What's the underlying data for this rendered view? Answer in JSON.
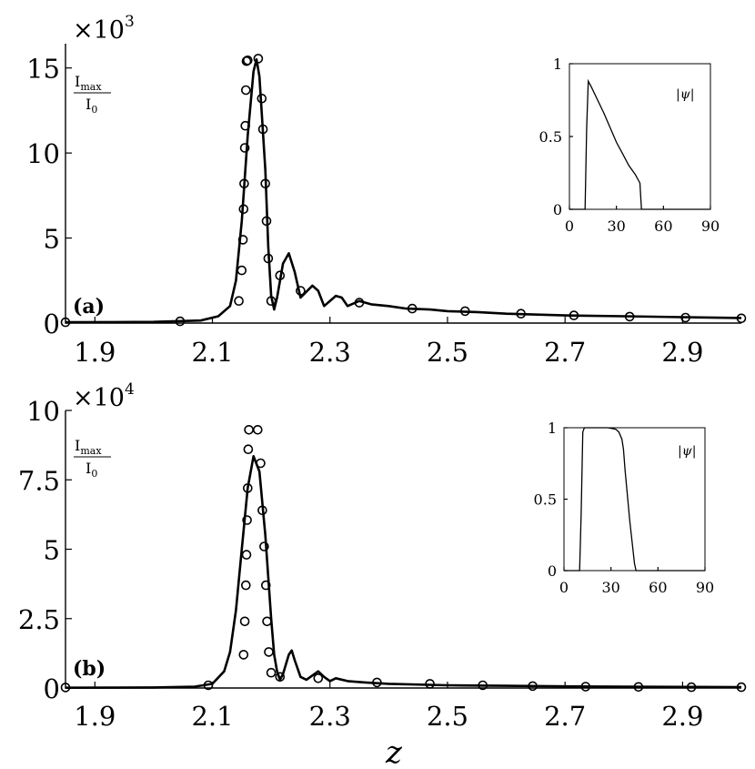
{
  "chart_data": [
    {
      "type": "line",
      "panel": "(a)",
      "xlabel": "",
      "ylabel": "Imax/I0",
      "ylabel_main": "I",
      "ylabel_sub": "max",
      "ylabel_den_main": "I",
      "ylabel_den_sub": "0",
      "exponent_base": "×10",
      "exponent_power": "3",
      "xlim": [
        1.85,
        3.0
      ],
      "ylim": [
        0,
        16
      ],
      "xticks": [
        "1.9",
        "2.1",
        "2.3",
        "2.5",
        "2.7",
        "2.9"
      ],
      "yticks": [
        "0",
        "5",
        "10",
        "15"
      ],
      "grid": false,
      "series": [
        {
          "style": "solid line",
          "x": [
            1.85,
            2.0,
            2.08,
            2.11,
            2.13,
            2.14,
            2.15,
            2.16,
            2.17,
            2.175,
            2.18,
            2.19,
            2.195,
            2.2,
            2.205,
            2.21,
            2.22,
            2.23,
            2.24,
            2.25,
            2.27,
            2.28,
            2.29,
            2.31,
            2.32,
            2.33,
            2.35,
            2.37,
            2.4,
            2.43,
            2.47,
            2.5,
            2.55,
            2.6,
            2.7,
            2.8,
            2.9,
            3.0
          ],
          "y": [
            0.05,
            0.07,
            0.15,
            0.4,
            1.0,
            2.5,
            6.0,
            11.0,
            14.8,
            15.5,
            14.5,
            9.0,
            4.5,
            1.6,
            0.8,
            1.5,
            3.5,
            4.1,
            3.0,
            1.5,
            2.2,
            1.9,
            1.0,
            1.6,
            1.5,
            1.0,
            1.3,
            1.1,
            1.0,
            0.85,
            0.8,
            0.7,
            0.65,
            0.55,
            0.45,
            0.4,
            0.35,
            0.3
          ]
        },
        {
          "style": "circle markers",
          "x": [
            1.85,
            2.045,
            2.145,
            2.15,
            2.152,
            2.153,
            2.154,
            2.155,
            2.156,
            2.157,
            2.158,
            2.16,
            2.178,
            2.184,
            2.186,
            2.19,
            2.192,
            2.195,
            2.2,
            2.215,
            2.25,
            2.35,
            2.44,
            2.53,
            2.625,
            2.715,
            2.81,
            2.905,
            3.0
          ],
          "y": [
            0.05,
            0.1,
            1.3,
            3.1,
            4.9,
            6.7,
            8.2,
            10.3,
            11.6,
            13.7,
            15.4,
            15.45,
            15.55,
            13.2,
            11.4,
            8.2,
            6.0,
            3.8,
            1.3,
            2.8,
            1.9,
            1.2,
            0.85,
            0.7,
            0.55,
            0.45,
            0.38,
            0.32,
            0.28
          ]
        }
      ],
      "inset": {
        "label": "|ψ|",
        "xlim": [
          0,
          90
        ],
        "ylim": [
          0,
          1
        ],
        "xticks": [
          "0",
          "30",
          "60",
          "90"
        ],
        "yticks": [
          "0",
          "0.5",
          "1"
        ],
        "x": [
          0,
          10,
          11,
          12,
          14,
          18,
          22,
          26,
          30,
          34,
          38,
          42,
          44,
          45,
          46,
          90
        ],
        "y": [
          0,
          0,
          0.55,
          0.88,
          0.84,
          0.75,
          0.66,
          0.56,
          0.46,
          0.38,
          0.3,
          0.24,
          0.2,
          0.18,
          0,
          0
        ]
      }
    },
    {
      "type": "line",
      "panel": "(b)",
      "xlabel": "z",
      "ylabel": "Imax/I0",
      "ylabel_main": "I",
      "ylabel_sub": "max",
      "ylabel_den_main": "I",
      "ylabel_den_sub": "0",
      "exponent_base": "×10",
      "exponent_power": "4",
      "xlim": [
        1.85,
        3.0
      ],
      "ylim": [
        0,
        10
      ],
      "xticks": [
        "1.9",
        "2.1",
        "2.3",
        "2.5",
        "2.7",
        "2.9"
      ],
      "yticks": [
        "0",
        "2.5",
        "5",
        "7.5",
        "10"
      ],
      "grid": false,
      "series": [
        {
          "style": "solid line",
          "x": [
            1.85,
            2.0,
            2.07,
            2.1,
            2.12,
            2.13,
            2.14,
            2.15,
            2.16,
            2.17,
            2.18,
            2.19,
            2.2,
            2.205,
            2.21,
            2.215,
            2.22,
            2.23,
            2.235,
            2.24,
            2.25,
            2.26,
            2.28,
            2.29,
            2.3,
            2.31,
            2.33,
            2.36,
            2.4,
            2.5,
            2.6,
            2.7,
            2.8,
            2.9,
            3.0
          ],
          "y": [
            0.01,
            0.02,
            0.05,
            0.15,
            0.6,
            1.3,
            2.8,
            5.0,
            7.2,
            8.35,
            7.8,
            5.5,
            2.5,
            1.2,
            0.6,
            0.3,
            0.5,
            1.2,
            1.35,
            1.0,
            0.4,
            0.3,
            0.6,
            0.4,
            0.25,
            0.35,
            0.25,
            0.2,
            0.15,
            0.1,
            0.08,
            0.06,
            0.05,
            0.04,
            0.03
          ]
        },
        {
          "style": "circle markers",
          "x": [
            1.85,
            2.093,
            2.153,
            2.155,
            2.157,
            2.158,
            2.159,
            2.16,
            2.161,
            2.162,
            2.177,
            2.182,
            2.185,
            2.188,
            2.191,
            2.193,
            2.196,
            2.2,
            2.215,
            2.28,
            2.38,
            2.47,
            2.56,
            2.645,
            2.735,
            2.825,
            2.915,
            3.0
          ],
          "y": [
            0.02,
            0.1,
            1.2,
            2.4,
            3.7,
            4.8,
            6.05,
            7.2,
            8.6,
            9.3,
            9.3,
            8.1,
            6.4,
            5.1,
            3.7,
            2.4,
            1.3,
            0.55,
            0.4,
            0.35,
            0.2,
            0.15,
            0.1,
            0.07,
            0.05,
            0.04,
            0.03,
            0.03
          ]
        }
      ],
      "inset": {
        "label": "|ψ|",
        "xlim": [
          0,
          90
        ],
        "ylim": [
          0,
          1
        ],
        "xticks": [
          "0",
          "30",
          "60",
          "90"
        ],
        "yticks": [
          "0",
          "0.5",
          "1"
        ],
        "x": [
          0,
          10,
          11,
          12,
          13,
          14,
          20,
          28,
          33,
          35,
          37,
          38,
          39,
          42,
          45,
          46,
          90
        ],
        "y": [
          0,
          0,
          0.4,
          0.97,
          1.0,
          1.0,
          1.0,
          1.0,
          0.99,
          0.97,
          0.92,
          0.85,
          0.7,
          0.35,
          0.05,
          0,
          0
        ]
      }
    }
  ]
}
